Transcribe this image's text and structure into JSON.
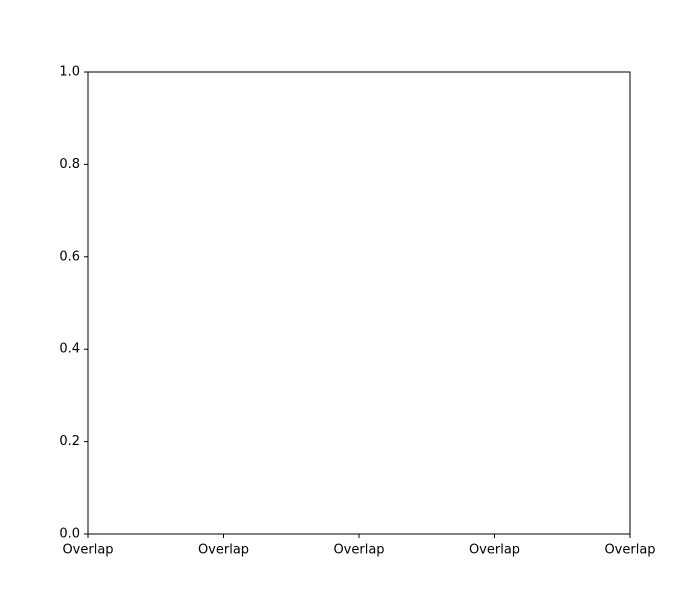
{
  "chart_data": {
    "type": "line",
    "title": "",
    "xlabel": "",
    "ylabel": "",
    "x_tick_labels": [
      "Overlap",
      "Overlap",
      "Overlap",
      "Overlap",
      "Overlap"
    ],
    "y_ticks": [
      0.0,
      0.2,
      0.4,
      0.6,
      0.8,
      1.0
    ],
    "y_tick_labels": [
      "0.0",
      "0.2",
      "0.4",
      "0.6",
      "0.8",
      "1.0"
    ],
    "ylim": [
      0.0,
      1.0
    ],
    "series": [],
    "grid": false,
    "colors": {
      "axis": "#000000",
      "background": "#ffffff"
    }
  }
}
